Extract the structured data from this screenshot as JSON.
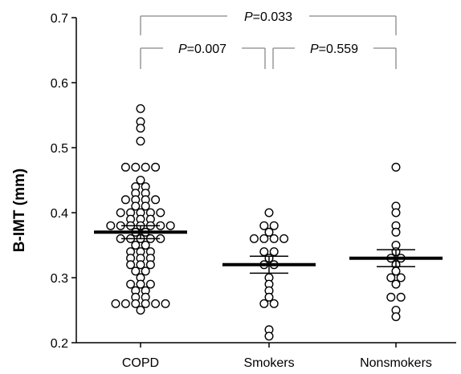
{
  "chart_data": {
    "type": "scatter",
    "title": "",
    "xlabel": "",
    "ylabel": "B-IMT (mm)",
    "ylim": [
      0.2,
      0.7
    ],
    "yticks": [
      "0.2",
      "0.3",
      "0.4",
      "0.5",
      "0.6",
      "0.7"
    ],
    "categories": [
      "COPD",
      "Smokers",
      "Nonsmokers"
    ],
    "grid": false,
    "series": [
      {
        "category": "COPD",
        "mean": 0.37,
        "sem_low": 0.36,
        "sem_high": 0.38,
        "values": [
          0.56,
          0.54,
          0.53,
          0.51,
          0.47,
          0.47,
          0.47,
          0.47,
          0.45,
          0.44,
          0.44,
          0.43,
          0.43,
          0.42,
          0.42,
          0.42,
          0.42,
          0.41,
          0.41,
          0.4,
          0.4,
          0.4,
          0.4,
          0.4,
          0.39,
          0.39,
          0.39,
          0.38,
          0.38,
          0.38,
          0.38,
          0.38,
          0.38,
          0.38,
          0.37,
          0.37,
          0.36,
          0.36,
          0.36,
          0.36,
          0.36,
          0.35,
          0.35,
          0.34,
          0.34,
          0.34,
          0.33,
          0.33,
          0.33,
          0.32,
          0.32,
          0.32,
          0.31,
          0.31,
          0.3,
          0.29,
          0.29,
          0.29,
          0.28,
          0.28,
          0.27,
          0.27,
          0.26,
          0.26,
          0.26,
          0.26,
          0.26,
          0.26,
          0.25
        ]
      },
      {
        "category": "Smokers",
        "mean": 0.32,
        "sem_low": 0.307,
        "sem_high": 0.333,
        "values": [
          0.4,
          0.38,
          0.38,
          0.37,
          0.36,
          0.36,
          0.36,
          0.36,
          0.34,
          0.34,
          0.33,
          0.32,
          0.32,
          0.3,
          0.29,
          0.28,
          0.27,
          0.26,
          0.26,
          0.22,
          0.21
        ]
      },
      {
        "category": "Nonsmokers",
        "mean": 0.33,
        "sem_low": 0.317,
        "sem_high": 0.343,
        "values": [
          0.47,
          0.41,
          0.4,
          0.38,
          0.37,
          0.35,
          0.34,
          0.33,
          0.33,
          0.32,
          0.31,
          0.3,
          0.3,
          0.29,
          0.27,
          0.27,
          0.25,
          0.24
        ]
      }
    ],
    "annotations": [
      {
        "p_label": "P",
        "p_value": "=0.033",
        "from": "COPD",
        "to": "Nonsmokers"
      },
      {
        "p_label": "P",
        "p_value": "=0.007",
        "from": "COPD",
        "to": "Smokers"
      },
      {
        "p_label": "P",
        "p_value": "=0.559",
        "from": "Smokers",
        "to": "Nonsmokers"
      }
    ]
  }
}
